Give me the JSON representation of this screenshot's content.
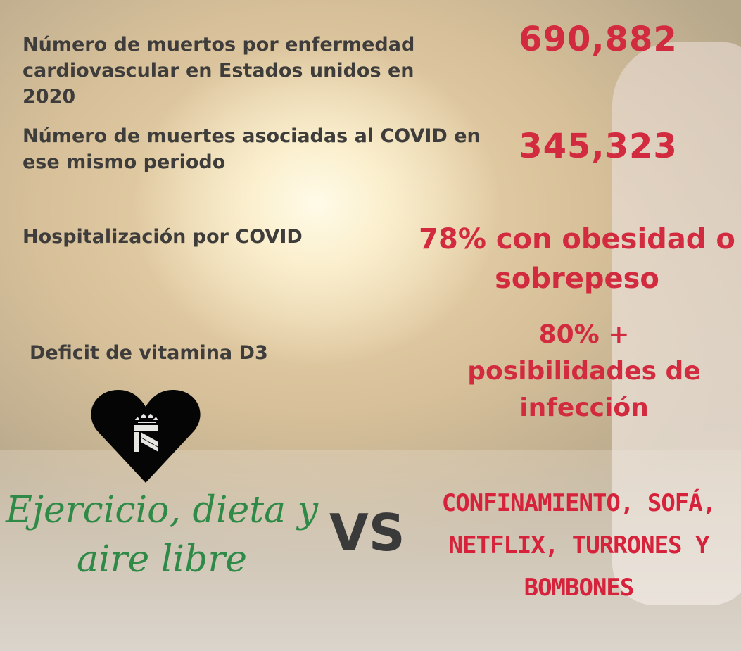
{
  "stats": [
    {
      "label": "Número de muertos por enfermedad cardiovascular en Estados unidos en 2020",
      "value": "690,882"
    },
    {
      "label": "Número de muertes asociadas al COVID en ese mismo periodo",
      "value": "345,323"
    },
    {
      "label": "Hospitalización por COVID",
      "value": "78% con obesidad o sobrepeso"
    },
    {
      "label": "Deficit de vitamina D3",
      "value": "80% + posibilidades de infección"
    }
  ],
  "comparison": {
    "left": "Ejercicio, dieta y aire libre",
    "vs": "VS",
    "right": "CONFINAMIENTO, SOFÁ, NETFLIX, TURRONES Y BOMBONES"
  },
  "logo": {
    "icon": "heart-icon",
    "text": "K"
  },
  "colors": {
    "label": "#3e3d3b",
    "highlight": "#d22a3e",
    "green": "#2f8a48"
  }
}
